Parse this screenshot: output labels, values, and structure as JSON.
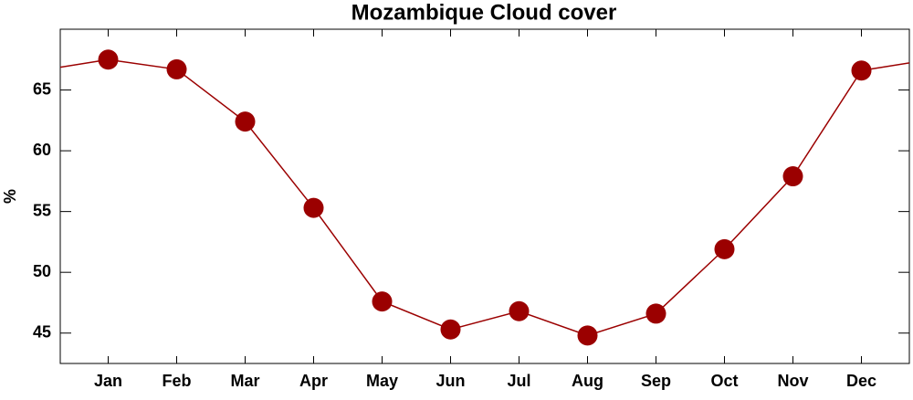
{
  "chart_data": {
    "type": "line",
    "title": "Mozambique Cloud cover",
    "ylabel": "%",
    "categories": [
      "Jan",
      "Feb",
      "Mar",
      "Apr",
      "May",
      "Jun",
      "Jul",
      "Aug",
      "Sep",
      "Oct",
      "Nov",
      "Dec"
    ],
    "series": [
      {
        "name": "Cloud cover",
        "color": "#9b0000",
        "values": [
          67.5,
          66.7,
          62.4,
          55.3,
          47.6,
          45.3,
          46.8,
          44.8,
          46.6,
          51.9,
          57.9,
          66.6
        ]
      }
    ],
    "ylim": [
      42.5,
      70
    ],
    "yticks": [
      45,
      50,
      55,
      60,
      65
    ],
    "grid": false
  }
}
